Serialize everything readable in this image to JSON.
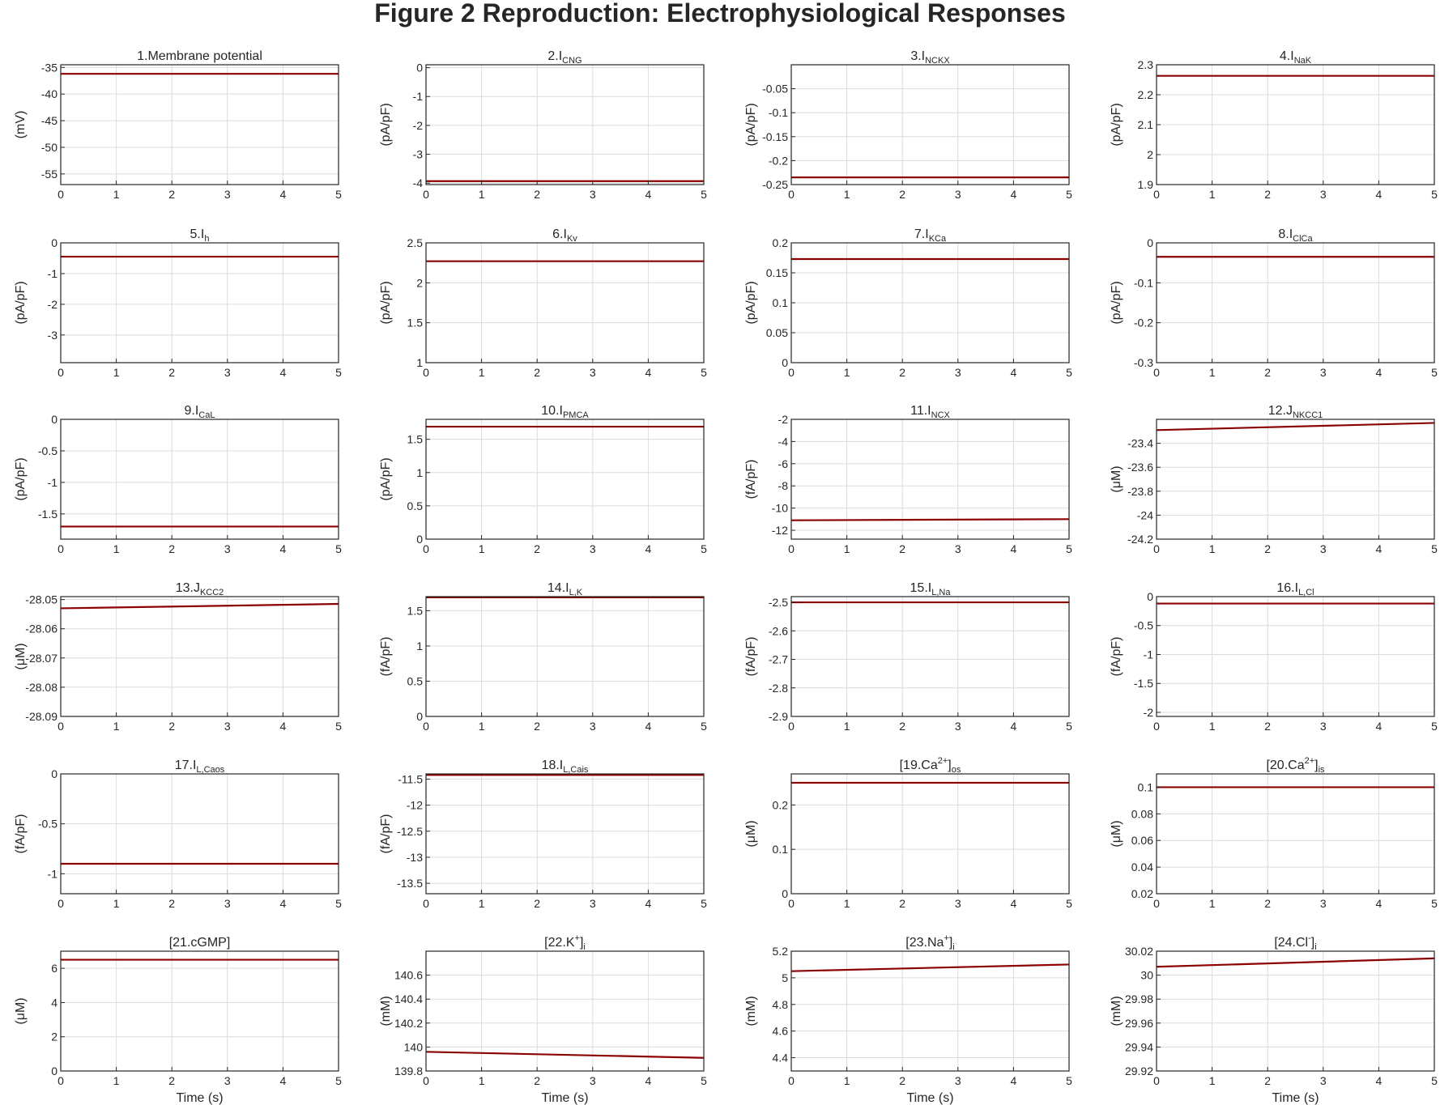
{
  "suptitle": "Figure 2 Reproduction: Electrophysiological Responses",
  "line_color": "#8b0000",
  "chart_data": [
    {
      "type": "line",
      "title": {
        "main": "1.Membrane potential",
        "sub": ""
      },
      "ylabel": "(mV)",
      "xlabel": "",
      "ylim": [
        -57,
        -34.5
      ],
      "yticks": [
        -35,
        -40,
        -45,
        -50,
        -55
      ],
      "xlim": [
        0,
        5
      ],
      "xticks": [
        0,
        1,
        2,
        3,
        4,
        5
      ],
      "x": [
        0,
        5
      ],
      "y": [
        -36.2,
        -36.2
      ]
    },
    {
      "type": "line",
      "title": {
        "main": "2.I",
        "sub": "CNG"
      },
      "ylabel": "(pA/pF)",
      "xlabel": "",
      "ylim": [
        -4.05,
        0.1
      ],
      "yticks": [
        0,
        -1,
        -2,
        -3,
        -4
      ],
      "xlim": [
        0,
        5
      ],
      "xticks": [
        0,
        1,
        2,
        3,
        4,
        5
      ],
      "x": [
        0,
        5
      ],
      "y": [
        -3.93,
        -3.93
      ]
    },
    {
      "type": "line",
      "title": {
        "main": "3.I",
        "sub": "NCKX"
      },
      "ylabel": "(pA/pF)",
      "xlabel": "",
      "ylim": [
        -0.25,
        0
      ],
      "yticks": [
        -0.05,
        -0.1,
        -0.15,
        -0.2,
        -0.25
      ],
      "xlim": [
        0,
        5
      ],
      "xticks": [
        0,
        1,
        2,
        3,
        4,
        5
      ],
      "x": [
        0,
        5
      ],
      "y": [
        -0.235,
        -0.235
      ]
    },
    {
      "type": "line",
      "title": {
        "main": "4.I",
        "sub": "NaK"
      },
      "ylabel": "(pA/pF)",
      "xlabel": "",
      "ylim": [
        1.9,
        2.3
      ],
      "yticks": [
        2.3,
        2.2,
        2.1,
        2,
        1.9
      ],
      "xlim": [
        0,
        5
      ],
      "xticks": [
        0,
        1,
        2,
        3,
        4,
        5
      ],
      "x": [
        0,
        5
      ],
      "y": [
        2.263,
        2.263
      ]
    },
    {
      "type": "line",
      "title": {
        "main": "5.I",
        "sub": "h"
      },
      "ylabel": "(pA/pF)",
      "xlabel": "",
      "ylim": [
        -3.9,
        0
      ],
      "yticks": [
        0,
        -1,
        -2,
        -3
      ],
      "xlim": [
        0,
        5
      ],
      "xticks": [
        0,
        1,
        2,
        3,
        4,
        5
      ],
      "x": [
        0,
        5
      ],
      "y": [
        -0.45,
        -0.45
      ]
    },
    {
      "type": "line",
      "title": {
        "main": "6.I",
        "sub": "Kv"
      },
      "ylabel": "(pA/pF)",
      "xlabel": "",
      "ylim": [
        1,
        2.5
      ],
      "yticks": [
        2.5,
        2,
        1.5,
        1
      ],
      "xlim": [
        0,
        5
      ],
      "xticks": [
        0,
        1,
        2,
        3,
        4,
        5
      ],
      "x": [
        0,
        5
      ],
      "y": [
        2.27,
        2.27
      ]
    },
    {
      "type": "line",
      "title": {
        "main": "7.I",
        "sub": "KCa"
      },
      "ylabel": "(pA/pF)",
      "xlabel": "",
      "ylim": [
        0,
        0.2
      ],
      "yticks": [
        0.2,
        0.15,
        0.1,
        0.05,
        0
      ],
      "xlim": [
        0,
        5
      ],
      "xticks": [
        0,
        1,
        2,
        3,
        4,
        5
      ],
      "x": [
        0,
        5
      ],
      "y": [
        0.173,
        0.173
      ]
    },
    {
      "type": "line",
      "title": {
        "main": "8.I",
        "sub": "ClCa"
      },
      "ylabel": "(pA/pF)",
      "xlabel": "",
      "ylim": [
        -0.3,
        0
      ],
      "yticks": [
        0,
        -0.1,
        -0.2,
        -0.3
      ],
      "xlim": [
        0,
        5
      ],
      "xticks": [
        0,
        1,
        2,
        3,
        4,
        5
      ],
      "x": [
        0,
        5
      ],
      "y": [
        -0.035,
        -0.035
      ]
    },
    {
      "type": "line",
      "title": {
        "main": "9.I",
        "sub": "CaL"
      },
      "ylabel": "(pA/pF)",
      "xlabel": "",
      "ylim": [
        -1.9,
        0
      ],
      "yticks": [
        0,
        -0.5,
        -1,
        -1.5
      ],
      "xlim": [
        0,
        5
      ],
      "xticks": [
        0,
        1,
        2,
        3,
        4,
        5
      ],
      "x": [
        0,
        5
      ],
      "y": [
        -1.7,
        -1.7
      ]
    },
    {
      "type": "line",
      "title": {
        "main": "10.I",
        "sub": "PMCA"
      },
      "ylabel": "(pA/pF)",
      "xlabel": "",
      "ylim": [
        0,
        1.8
      ],
      "yticks": [
        1.5,
        1,
        0.5,
        0
      ],
      "xlim": [
        0,
        5
      ],
      "xticks": [
        0,
        1,
        2,
        3,
        4,
        5
      ],
      "x": [
        0,
        5
      ],
      "y": [
        1.69,
        1.69
      ]
    },
    {
      "type": "line",
      "title": {
        "main": "11.I",
        "sub": "NCX"
      },
      "ylabel": "(fA/pF)",
      "xlabel": "",
      "ylim": [
        -12.8,
        -2
      ],
      "yticks": [
        -2,
        -4,
        -6,
        -8,
        -10,
        -12
      ],
      "xlim": [
        0,
        5
      ],
      "xticks": [
        0,
        1,
        2,
        3,
        4,
        5
      ],
      "x": [
        0,
        5
      ],
      "y": [
        -11.1,
        -11.0
      ]
    },
    {
      "type": "line",
      "title": {
        "main": "12.J",
        "sub": "NKCC1"
      },
      "ylabel": "(μM)",
      "xlabel": "",
      "ylim": [
        -24.2,
        -23.2
      ],
      "yticks": [
        -23.4,
        -23.6,
        -23.8,
        -24,
        -24.2
      ],
      "xlim": [
        0,
        5
      ],
      "xticks": [
        0,
        1,
        2,
        3,
        4,
        5
      ],
      "x": [
        0,
        5
      ],
      "y": [
        -23.29,
        -23.23
      ]
    },
    {
      "type": "line",
      "title": {
        "main": "13.J",
        "sub": "KCC2"
      },
      "ylabel": "(μM)",
      "xlabel": "",
      "ylim": [
        -28.09,
        -28.049
      ],
      "yticks": [
        -28.05,
        -28.06,
        -28.07,
        -28.08,
        -28.09
      ],
      "xlim": [
        0,
        5
      ],
      "xticks": [
        0,
        1,
        2,
        3,
        4,
        5
      ],
      "x": [
        0,
        5
      ],
      "y": [
        -28.053,
        -28.0515
      ]
    },
    {
      "type": "line",
      "title": {
        "main": "14.I",
        "sub": "L,K"
      },
      "ylabel": "(fA/pF)",
      "xlabel": "",
      "ylim": [
        0,
        1.7
      ],
      "yticks": [
        1.5,
        1,
        0.5,
        0
      ],
      "xlim": [
        0,
        5
      ],
      "xticks": [
        0,
        1,
        2,
        3,
        4,
        5
      ],
      "x": [
        0,
        5
      ],
      "y": [
        1.69,
        1.69
      ]
    },
    {
      "type": "line",
      "title": {
        "main": "15.I",
        "sub": "L,Na"
      },
      "ylabel": "(fA/pF)",
      "xlabel": "",
      "ylim": [
        -2.9,
        -2.48
      ],
      "yticks": [
        -2.5,
        -2.6,
        -2.7,
        -2.8,
        -2.9
      ],
      "xlim": [
        0,
        5
      ],
      "xticks": [
        0,
        1,
        2,
        3,
        4,
        5
      ],
      "x": [
        0,
        5
      ],
      "y": [
        -2.5,
        -2.5
      ]
    },
    {
      "type": "line",
      "title": {
        "main": "16.I",
        "sub": "L,Cl"
      },
      "ylabel": "(fA/pF)",
      "xlabel": "",
      "ylim": [
        -2.07,
        0
      ],
      "yticks": [
        0,
        -0.5,
        -1,
        -1.5,
        -2
      ],
      "xlim": [
        0,
        5
      ],
      "xticks": [
        0,
        1,
        2,
        3,
        4,
        5
      ],
      "x": [
        0,
        5
      ],
      "y": [
        -0.12,
        -0.12
      ]
    },
    {
      "type": "line",
      "title": {
        "main": "17.I",
        "sub": "L,Caos"
      },
      "ylabel": "(fA/pF)",
      "xlabel": "",
      "ylim": [
        -1.2,
        0
      ],
      "yticks": [
        0,
        -0.5,
        -1
      ],
      "xlim": [
        0,
        5
      ],
      "xticks": [
        0,
        1,
        2,
        3,
        4,
        5
      ],
      "x": [
        0,
        5
      ],
      "y": [
        -0.9,
        -0.9
      ]
    },
    {
      "type": "line",
      "title": {
        "main": "18.I",
        "sub": "L,Cais"
      },
      "ylabel": "(fA/pF)",
      "xlabel": "",
      "ylim": [
        -13.7,
        -11.4
      ],
      "yticks": [
        -11.5,
        -12,
        -12.5,
        -13,
        -13.5
      ],
      "xlim": [
        0,
        5
      ],
      "xticks": [
        0,
        1,
        2,
        3,
        4,
        5
      ],
      "x": [
        0,
        5
      ],
      "y": [
        -11.42,
        -11.42
      ]
    },
    {
      "type": "line",
      "title": {
        "main": "[19.Ca",
        "sup": "2+",
        "close": "]",
        "sub": "os"
      },
      "ylabel": "(μM)",
      "xlabel": "",
      "ylim": [
        0,
        0.27
      ],
      "yticks": [
        0.2,
        0.1,
        0
      ],
      "xlim": [
        0,
        5
      ],
      "xticks": [
        0,
        1,
        2,
        3,
        4,
        5
      ],
      "x": [
        0,
        5
      ],
      "y": [
        0.25,
        0.25
      ]
    },
    {
      "type": "line",
      "title": {
        "main": "[20.Ca",
        "sup": "2+",
        "close": "]",
        "sub": "is"
      },
      "ylabel": "(μM)",
      "xlabel": "",
      "ylim": [
        0.02,
        0.11
      ],
      "yticks": [
        0.1,
        0.08,
        0.06,
        0.04,
        0.02
      ],
      "xlim": [
        0,
        5
      ],
      "xticks": [
        0,
        1,
        2,
        3,
        4,
        5
      ],
      "x": [
        0,
        5
      ],
      "y": [
        0.1,
        0.1
      ]
    },
    {
      "type": "line",
      "title": {
        "main": "[21.cGMP]",
        "sub": ""
      },
      "ylabel": "(μM)",
      "xlabel": "Time (s)",
      "ylim": [
        0,
        7
      ],
      "yticks": [
        6,
        4,
        2,
        0
      ],
      "xlim": [
        0,
        5
      ],
      "xticks": [
        0,
        1,
        2,
        3,
        4,
        5
      ],
      "x": [
        0,
        5
      ],
      "y": [
        6.5,
        6.5
      ]
    },
    {
      "type": "line",
      "title": {
        "main": "[22.K",
        "sup": "+",
        "close": "]",
        "sub": "i"
      },
      "ylabel": "(mM)",
      "xlabel": "Time (s)",
      "ylim": [
        139.8,
        140.8
      ],
      "yticks": [
        140.6,
        140.4,
        140.2,
        140,
        139.8
      ],
      "xlim": [
        0,
        5
      ],
      "xticks": [
        0,
        1,
        2,
        3,
        4,
        5
      ],
      "x": [
        0,
        5
      ],
      "y": [
        139.96,
        139.91
      ]
    },
    {
      "type": "line",
      "title": {
        "main": "[23.Na",
        "sup": "+",
        "close": "]",
        "sub": "i"
      },
      "ylabel": "(mM)",
      "xlabel": "Time (s)",
      "ylim": [
        4.3,
        5.2
      ],
      "yticks": [
        5.2,
        5,
        4.8,
        4.6,
        4.4
      ],
      "xlim": [
        0,
        5
      ],
      "xticks": [
        0,
        1,
        2,
        3,
        4,
        5
      ],
      "x": [
        0,
        5
      ],
      "y": [
        5.05,
        5.1
      ]
    },
    {
      "type": "line",
      "title": {
        "main": "[24.Cl",
        "sup": "-",
        "close": "]",
        "sub": "i"
      },
      "ylabel": "(mM)",
      "xlabel": "Time (s)",
      "ylim": [
        29.92,
        30.02
      ],
      "yticks": [
        30.02,
        30,
        29.98,
        29.96,
        29.94,
        29.92
      ],
      "xlim": [
        0,
        5
      ],
      "xticks": [
        0,
        1,
        2,
        3,
        4,
        5
      ],
      "x": [
        0,
        5
      ],
      "y": [
        30.007,
        30.014
      ]
    }
  ]
}
